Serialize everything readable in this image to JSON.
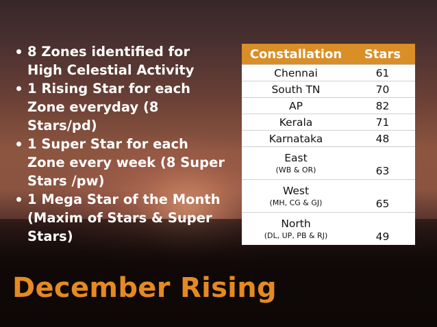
{
  "bullets": [
    "8 Zones identified for High Celestial Activity",
    "1 Rising Star for each Zone everyday (8 Stars/pd)",
    "1 Super Star  for each Zone every week (8 Super Stars /pw)",
    "1 Mega Star of the Month (Maxim of Stars & Super Stars)"
  ],
  "table": {
    "headers": [
      "Constallation",
      "Stars"
    ],
    "rows": [
      {
        "name": "Chennai",
        "sub": "",
        "stars": "61"
      },
      {
        "name": "South TN",
        "sub": "",
        "stars": "70"
      },
      {
        "name": "AP",
        "sub": "",
        "stars": "82"
      },
      {
        "name": "Kerala",
        "sub": "",
        "stars": "71"
      },
      {
        "name": "Karnataka",
        "sub": "",
        "stars": "48"
      },
      {
        "name": "East",
        "sub": "(WB & OR)",
        "stars": "63"
      },
      {
        "name": "West",
        "sub": "(MH, CG & GJ)",
        "stars": "65"
      },
      {
        "name": "North",
        "sub": "(DL, UP, PB & RJ)",
        "stars": "49"
      }
    ]
  },
  "title": "December Rising",
  "colors": {
    "accent": "#e48a23",
    "header_bg": "#d98e27",
    "text": "#ffffff"
  }
}
